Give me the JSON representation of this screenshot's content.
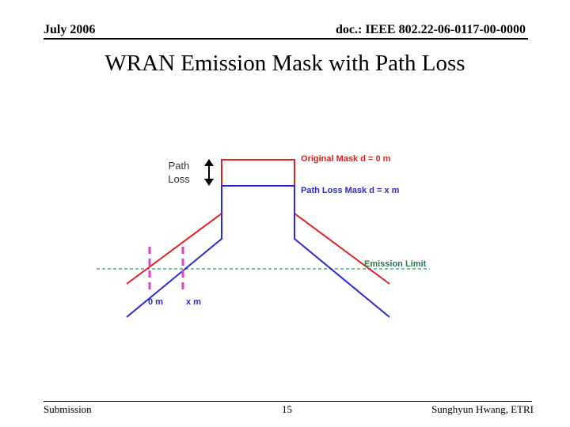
{
  "header": {
    "date": "July 2006",
    "doc_id": "doc.: IEEE 802.22-06-0117-00-0000"
  },
  "title": "WRAN Emission Mask with Path Loss",
  "diagram": {
    "path_loss_line1": "Path",
    "path_loss_line2": "Loss",
    "original_mask_label": "Original Mask d = 0 m",
    "path_loss_mask_label": "Path Loss Mask d = x m",
    "emission_limit_label": "Emission Limit",
    "distance_zero_label": "0 m",
    "distance_x_label": "x m",
    "colors": {
      "original_mask": "#e02020",
      "path_loss_mask": "#2a2ad0",
      "emission_limit": "#4caa6e",
      "distance_markers": "#e040c0"
    }
  },
  "footer": {
    "left": "Submission",
    "page": "15",
    "author": "Sunghyun Hwang, ETRI"
  }
}
